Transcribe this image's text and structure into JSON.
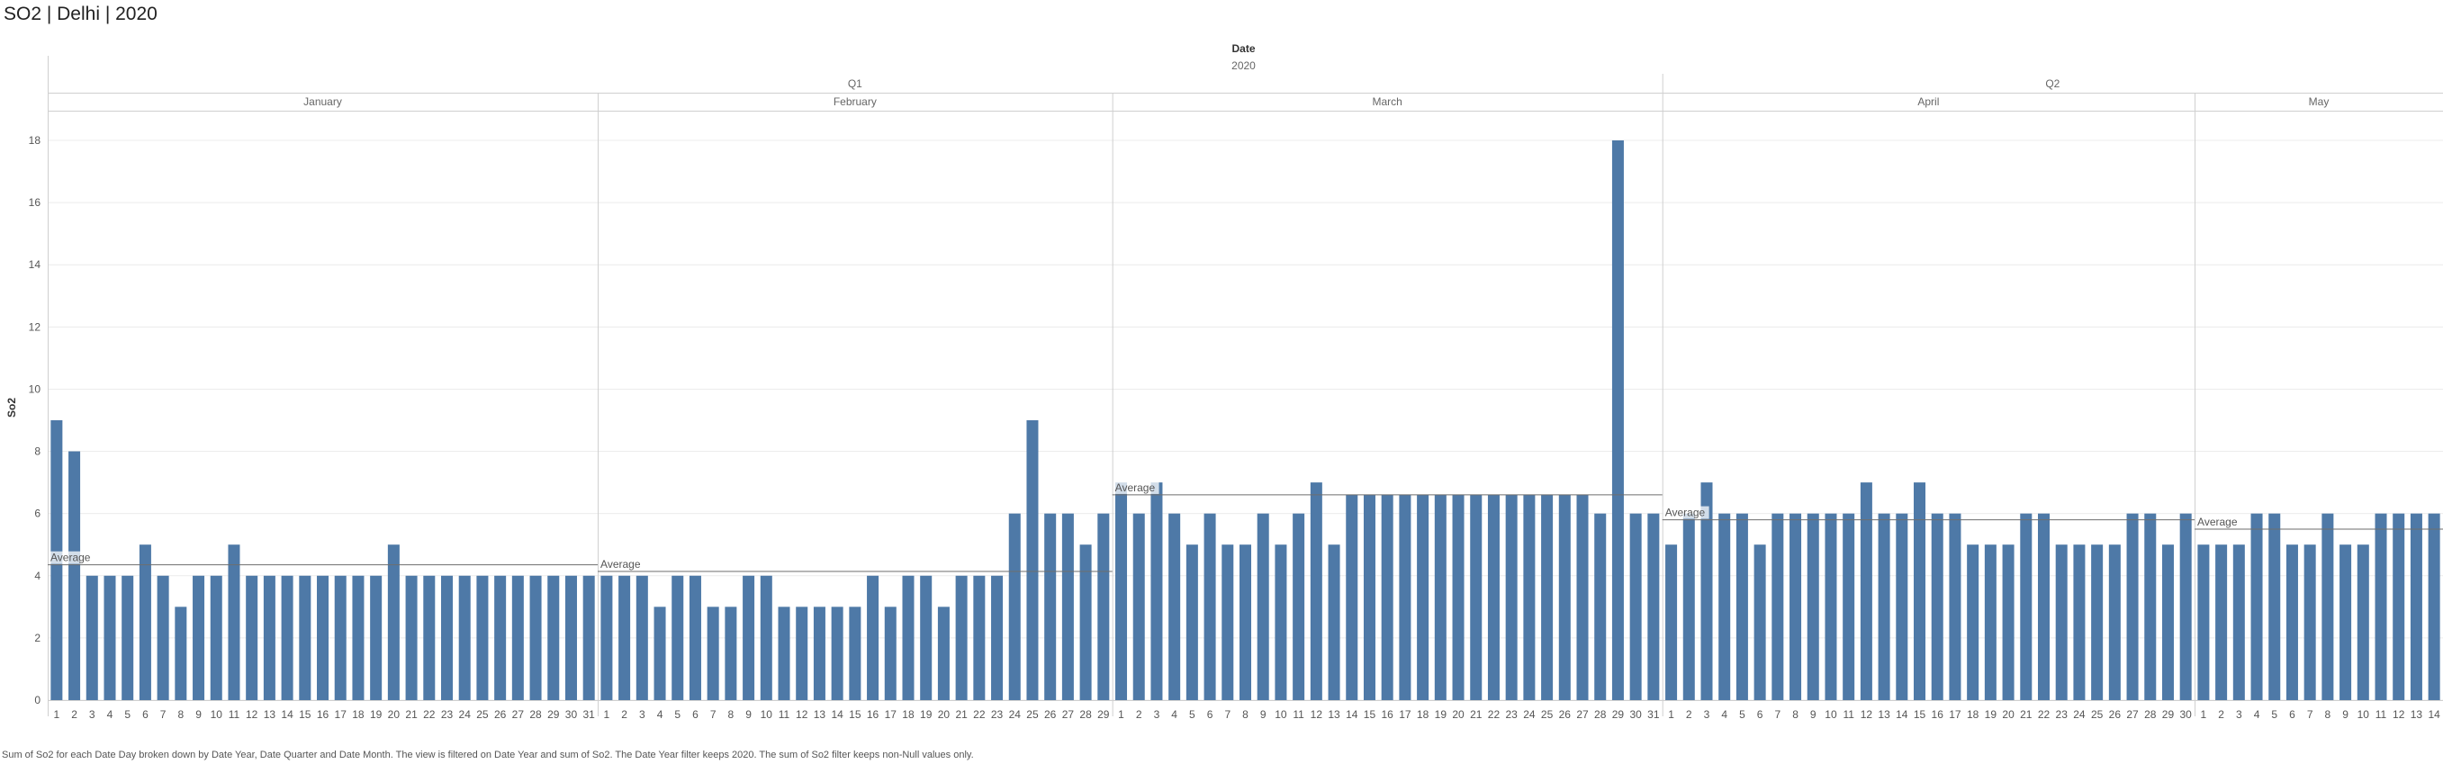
{
  "title": "SO2 | Delhi | 2020",
  "footnote": "Sum of So2 for each Date Day broken down by Date Year, Date Quarter and Date Month. The view is filtered on Date Year and sum of So2. The Date Year filter keeps 2020. The sum of So2 filter keeps non-Null values only.",
  "colors": {
    "bar": "#4e79a7",
    "grid": "#ececec",
    "divider": "#cfcfcf",
    "avg_line": "#6e6e6e"
  },
  "chart_data": {
    "type": "bar",
    "header": {
      "field": "Date",
      "year": "2020"
    },
    "ylabel": "So2",
    "ylim": [
      0,
      19
    ],
    "yticks": [
      0,
      2,
      4,
      6,
      8,
      10,
      12,
      14,
      16,
      18
    ],
    "grid": true,
    "average_label": "Average",
    "quarters": [
      {
        "label": "Q1",
        "months": [
          "January",
          "February",
          "March"
        ]
      },
      {
        "label": "Q2",
        "months": [
          "April",
          "May"
        ]
      }
    ],
    "months": [
      {
        "name": "January",
        "average": 4.35,
        "days": [
          1,
          2,
          3,
          4,
          5,
          6,
          7,
          8,
          9,
          10,
          11,
          12,
          13,
          14,
          15,
          16,
          17,
          18,
          19,
          20,
          21,
          22,
          23,
          24,
          25,
          26,
          27,
          28,
          29,
          30,
          31
        ],
        "values": [
          9,
          8,
          4,
          4,
          4,
          5,
          4,
          3,
          4,
          4,
          5,
          4,
          4,
          4,
          4,
          4,
          4,
          4,
          4,
          5,
          4,
          4,
          4,
          4,
          4,
          4,
          4,
          4,
          4,
          4,
          4
        ]
      },
      {
        "name": "February",
        "average": 4.14,
        "days": [
          1,
          2,
          3,
          4,
          5,
          6,
          7,
          8,
          9,
          10,
          11,
          12,
          13,
          14,
          15,
          16,
          17,
          18,
          19,
          20,
          21,
          22,
          23,
          24,
          25,
          26,
          27,
          28,
          29
        ],
        "values": [
          4,
          4,
          4,
          3,
          4,
          4,
          3,
          3,
          4,
          4,
          3,
          3,
          3,
          3,
          3,
          4,
          3,
          4,
          4,
          3,
          4,
          4,
          4,
          6,
          9,
          6,
          6,
          5,
          6
        ]
      },
      {
        "name": "March",
        "average": 6.6,
        "days": [
          1,
          2,
          3,
          4,
          5,
          6,
          7,
          8,
          9,
          10,
          11,
          12,
          13,
          14,
          15,
          16,
          17,
          18,
          19,
          20,
          21,
          22,
          23,
          24,
          25,
          26,
          27,
          28,
          29,
          30,
          31
        ],
        "values": [
          7,
          6,
          7,
          6,
          5,
          6,
          5,
          5,
          6,
          5,
          6,
          7,
          5,
          6.6,
          6.6,
          6.6,
          6.6,
          6.6,
          6.6,
          6.6,
          6.6,
          6.6,
          6.6,
          6.6,
          6.6,
          6.6,
          6.6,
          6,
          18,
          6,
          6
        ]
      },
      {
        "name": "April",
        "average": 5.8,
        "days": [
          1,
          2,
          3,
          4,
          5,
          6,
          7,
          8,
          9,
          10,
          11,
          12,
          13,
          14,
          15,
          16,
          17,
          18,
          19,
          20,
          21,
          22,
          23,
          24,
          25,
          26,
          27,
          28,
          29,
          30
        ],
        "values": [
          5,
          6,
          7,
          6,
          6,
          5,
          6,
          6,
          6,
          6,
          6,
          7,
          6,
          6,
          7,
          6,
          6,
          5,
          5,
          5,
          6,
          6,
          5,
          5,
          5,
          5,
          6,
          6,
          5,
          6
        ]
      },
      {
        "name": "May",
        "average": 5.5,
        "days": [
          1,
          2,
          3,
          4,
          5,
          6,
          7,
          8,
          9,
          10,
          11,
          12,
          13,
          14
        ],
        "values": [
          5,
          5,
          5,
          6,
          6,
          5,
          5,
          6,
          5,
          5,
          6,
          6,
          6,
          6
        ]
      }
    ]
  }
}
